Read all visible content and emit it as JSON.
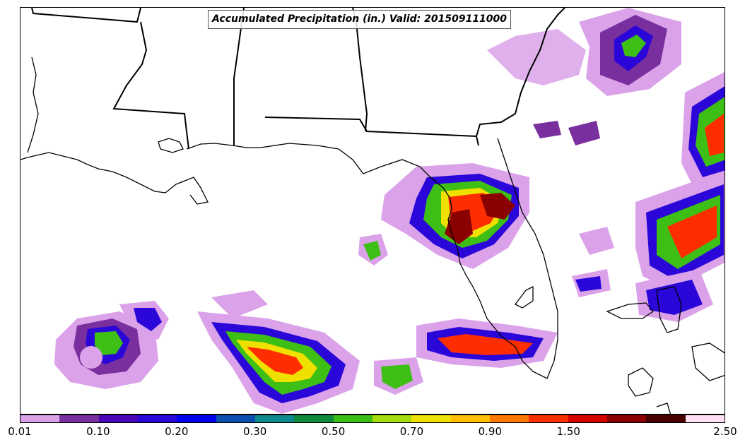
{
  "title": "Accumulated Precipitation (in.) Valid: 201509111000",
  "colorbar": {
    "colors": [
      "#dba2ea",
      "#7a2f9e",
      "#4b06b6",
      "#2a06d8",
      "#0000ee",
      "#0b4fb0",
      "#0c8a8e",
      "#0d8a3b",
      "#3dbf16",
      "#a4dc0d",
      "#f0e000",
      "#ffbf00",
      "#ff7a00",
      "#ff2e00",
      "#d40000",
      "#8b0000",
      "#4a0000",
      "#ffe0f6"
    ],
    "ticks": [
      "0.01",
      "0.10",
      "0.20",
      "0.30",
      "0.50",
      "0.70",
      "0.90",
      "1.50",
      "2.50"
    ]
  },
  "legend_units": "in."
}
